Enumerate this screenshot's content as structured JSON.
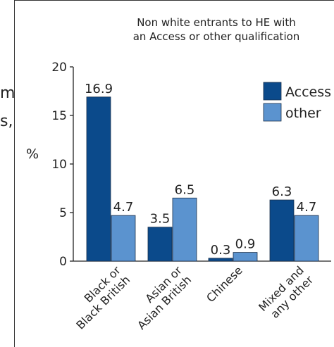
{
  "clipped_left_text": [
    "m",
    "s,"
  ],
  "chart_data": {
    "type": "bar",
    "title": "Non white entrants to HE with an Access or other qualification",
    "title_lines": [
      "Non white entrants to HE with",
      "an Access or other qualification"
    ],
    "ylabel": "%",
    "ylim": [
      0,
      20
    ],
    "yticks": [
      0,
      5,
      10,
      15,
      20
    ],
    "categories": [
      [
        "Black or",
        "Black British"
      ],
      [
        "Asian or",
        "Asian British"
      ],
      [
        "Chinese"
      ],
      [
        "Mixed and",
        "any other"
      ]
    ],
    "series": [
      {
        "name": "Access",
        "color": "#0b4a8b",
        "values": [
          16.9,
          3.5,
          0.3,
          6.3
        ],
        "labels": [
          "16.9",
          "3.5",
          "0.3",
          "6.3"
        ]
      },
      {
        "name": "other",
        "color": "#5b93cf",
        "values": [
          4.7,
          6.5,
          0.9,
          4.7
        ],
        "labels": [
          "4.7",
          "6.5",
          "0.9",
          "4.7"
        ]
      }
    ],
    "legend_position": "top-right",
    "grid": false
  }
}
